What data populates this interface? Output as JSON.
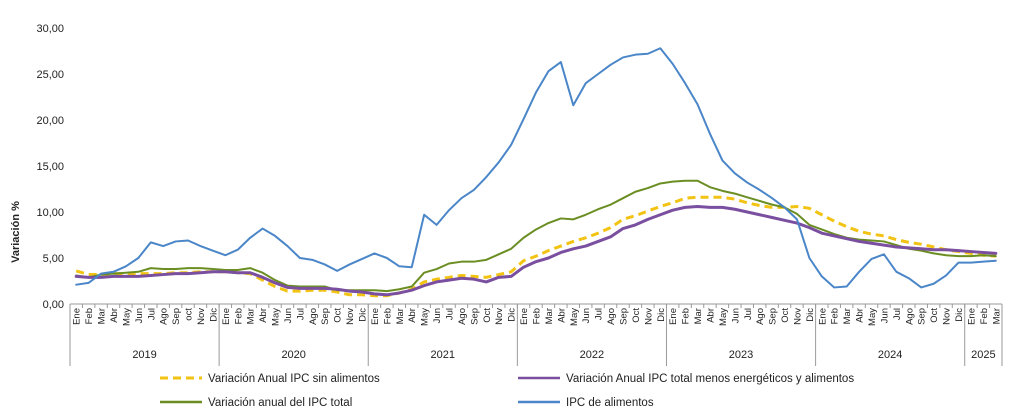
{
  "chart_data": {
    "type": "line",
    "ylabel": "Variación %",
    "ylim": [
      0,
      30
    ],
    "ytick_labels": [
      "0,00",
      "5,00",
      "10,00",
      "15,00",
      "20,00",
      "25,00",
      "30,00"
    ],
    "grid": false,
    "legend_position": "bottom",
    "x": [
      "Ene",
      "Feb",
      "Mar",
      "Abr",
      "May",
      "Jun",
      "Jul",
      "Ago",
      "Sep",
      "oct",
      "Nov",
      "Dic",
      "Ene",
      "Feb",
      "Mar",
      "Abr",
      "May",
      "Jun",
      "Jul",
      "Ago",
      "Sep",
      "Oct",
      "Nov",
      "Dic",
      "Ene",
      "Feb",
      "Mar",
      "Abr",
      "May",
      "Jun",
      "Jul",
      "Ago",
      "Sep",
      "Oct",
      "Nov",
      "Dic",
      "Ene",
      "Feb",
      "Mar",
      "Abr",
      "May",
      "Jun",
      "Jul",
      "Ago",
      "Sep",
      "Oct",
      "Nov",
      "Dic",
      "Ene",
      "Feb",
      "Mar",
      "Abr",
      "May",
      "Jun",
      "Jul",
      "Ago",
      "Sep",
      "Oct",
      "Nov",
      "Dic",
      "Ene",
      "Feb",
      "Mar",
      "Abr",
      "May",
      "Jun",
      "Jul",
      "Ago",
      "Sep",
      "Oct",
      "Nov",
      "Dic",
      "Ene",
      "Feb",
      "Mar"
    ],
    "years": [
      {
        "label": "2019",
        "start": 0,
        "count": 12
      },
      {
        "label": "2020",
        "start": 12,
        "count": 12
      },
      {
        "label": "2021",
        "start": 24,
        "count": 12
      },
      {
        "label": "2022",
        "start": 36,
        "count": 12
      },
      {
        "label": "2023",
        "start": 48,
        "count": 12
      },
      {
        "label": "2024",
        "start": 60,
        "count": 12
      },
      {
        "label": "2025",
        "start": 72,
        "count": 3
      }
    ],
    "series": [
      {
        "name": "Variación Anual IPC sin alimentos",
        "color": "#f2c313",
        "dash": "dashed",
        "values": [
          3.6,
          3.2,
          3.2,
          3.3,
          3.3,
          3.3,
          3.3,
          3.3,
          3.4,
          3.4,
          3.5,
          3.5,
          3.5,
          3.4,
          3.3,
          2.6,
          1.9,
          1.4,
          1.4,
          1.5,
          1.5,
          1.3,
          1.0,
          1.0,
          0.9,
          0.9,
          1.2,
          1.6,
          2.4,
          2.7,
          2.9,
          3.1,
          3.0,
          2.9,
          3.2,
          3.5,
          4.7,
          5.2,
          5.8,
          6.3,
          6.8,
          7.2,
          7.7,
          8.3,
          9.2,
          9.6,
          10.1,
          10.6,
          11.0,
          11.5,
          11.6,
          11.6,
          11.6,
          11.4,
          11.0,
          10.7,
          10.5,
          10.5,
          10.6,
          10.4,
          9.7,
          9.0,
          8.4,
          7.9,
          7.6,
          7.4,
          7.0,
          6.7,
          6.5,
          6.2,
          5.9,
          5.7,
          5.5,
          5.3,
          5.2
        ]
      },
      {
        "name": "Variación Anual IPC total menos energéticos y alimentos",
        "color": "#7a4fa0",
        "dash": "solid",
        "values": [
          3.0,
          2.9,
          2.9,
          3.0,
          3.0,
          3.0,
          3.1,
          3.2,
          3.3,
          3.3,
          3.4,
          3.5,
          3.5,
          3.4,
          3.4,
          2.9,
          2.3,
          1.8,
          1.7,
          1.7,
          1.7,
          1.6,
          1.4,
          1.3,
          1.1,
          1.0,
          1.2,
          1.5,
          2.0,
          2.4,
          2.6,
          2.8,
          2.7,
          2.4,
          2.9,
          3.0,
          4.0,
          4.6,
          5.0,
          5.6,
          6.0,
          6.3,
          6.8,
          7.3,
          8.2,
          8.6,
          9.2,
          9.7,
          10.2,
          10.5,
          10.6,
          10.5,
          10.5,
          10.3,
          10.0,
          9.7,
          9.4,
          9.1,
          8.8,
          8.3,
          7.7,
          7.4,
          7.1,
          6.8,
          6.6,
          6.4,
          6.2,
          6.1,
          6.0,
          5.9,
          5.9,
          5.8,
          5.7,
          5.6,
          5.5
        ]
      },
      {
        "name": "Variación anual del IPC total",
        "color": "#6b8e23",
        "dash": "solid",
        "values": [
          3.1,
          2.9,
          3.2,
          3.3,
          3.4,
          3.5,
          3.9,
          3.8,
          3.8,
          3.9,
          3.9,
          3.8,
          3.7,
          3.7,
          3.9,
          3.4,
          2.6,
          2.0,
          1.9,
          1.9,
          1.9,
          1.5,
          1.5,
          1.5,
          1.5,
          1.4,
          1.6,
          1.9,
          3.4,
          3.8,
          4.4,
          4.6,
          4.6,
          4.8,
          5.4,
          6.0,
          7.2,
          8.1,
          8.8,
          9.3,
          9.2,
          9.7,
          10.3,
          10.8,
          11.5,
          12.2,
          12.6,
          13.1,
          13.3,
          13.4,
          13.4,
          12.7,
          12.3,
          12.0,
          11.6,
          11.2,
          10.8,
          10.5,
          9.8,
          8.6,
          8.1,
          7.6,
          7.2,
          7.0,
          6.9,
          6.8,
          6.4,
          6.0,
          5.8,
          5.5,
          5.3,
          5.2,
          5.2,
          5.3,
          5.2
        ]
      },
      {
        "name": "IPC de alimentos",
        "color": "#4a86c8",
        "dash": "solid",
        "values": [
          2.1,
          2.3,
          3.3,
          3.5,
          4.1,
          5.0,
          6.7,
          6.3,
          6.8,
          6.9,
          6.3,
          5.8,
          5.3,
          5.9,
          7.2,
          8.2,
          7.4,
          6.3,
          5.0,
          4.8,
          4.3,
          3.6,
          4.3,
          4.9,
          5.5,
          5.0,
          4.1,
          4.0,
          9.7,
          8.6,
          10.2,
          11.5,
          12.4,
          13.8,
          15.4,
          17.3,
          20.1,
          23.0,
          25.3,
          26.3,
          21.6,
          24.0,
          25.0,
          26.0,
          26.8,
          27.1,
          27.2,
          27.8,
          26.1,
          24.0,
          21.7,
          18.5,
          15.6,
          14.2,
          13.2,
          12.4,
          11.5,
          10.5,
          9.2,
          5.0,
          3.0,
          1.8,
          1.9,
          3.5,
          4.9,
          5.4,
          3.5,
          2.8,
          1.8,
          2.2,
          3.1,
          4.5,
          4.5,
          4.6,
          4.7
        ]
      }
    ]
  }
}
